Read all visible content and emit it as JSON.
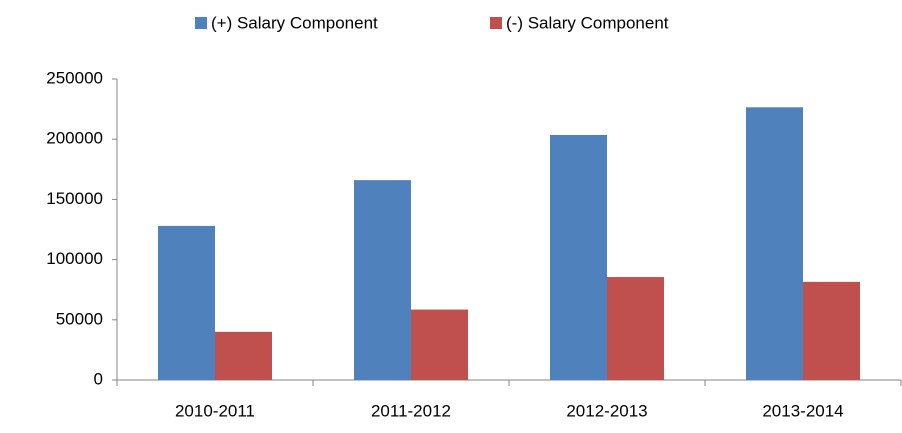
{
  "chart_data": {
    "type": "bar",
    "categories": [
      "2010-2011",
      "2011-2012",
      "2012-2013",
      "2013-2014"
    ],
    "series": [
      {
        "name": "(+) Salary Component",
        "color": "#4f81bd",
        "values": [
          128000,
          166000,
          203500,
          226500
        ]
      },
      {
        "name": "(-) Salary Component",
        "color": "#c0504d",
        "values": [
          40000,
          58500,
          85500,
          81500
        ]
      }
    ],
    "ylim": [
      0,
      250000
    ],
    "yticks": [
      0,
      50000,
      100000,
      150000,
      200000,
      250000
    ],
    "grid": false,
    "legend": "top"
  }
}
